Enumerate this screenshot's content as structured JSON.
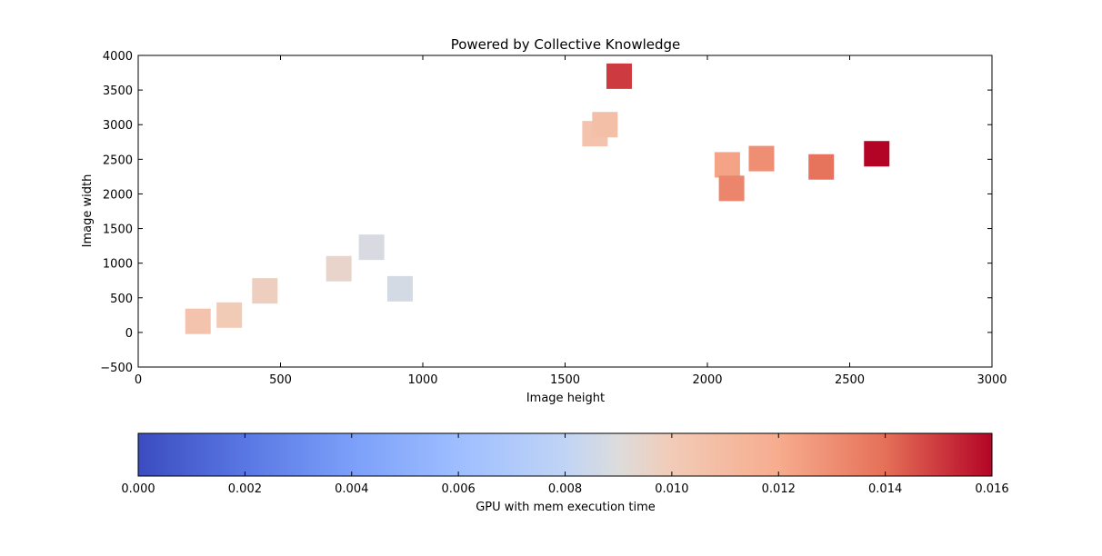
{
  "chart_data": {
    "type": "scatter",
    "title": "Powered by Collective Knowledge",
    "xlabel": "Image height",
    "ylabel": "Image width",
    "xlim": [
      0,
      3000
    ],
    "ylim": [
      -500,
      4000
    ],
    "xticks": [
      0,
      500,
      1000,
      1500,
      2000,
      2500,
      3000
    ],
    "yticks": [
      -500,
      0,
      500,
      1000,
      1500,
      2000,
      2500,
      3000,
      3500,
      4000
    ],
    "marker": "square",
    "colormap": "coolwarm",
    "colorbar": {
      "label": "GPU with mem execution time",
      "range": [
        0.0,
        0.016
      ],
      "ticks": [
        "0.000",
        "0.002",
        "0.004",
        "0.006",
        "0.008",
        "0.010",
        "0.012",
        "0.014",
        "0.016"
      ],
      "ticks_values": [
        0.0,
        0.002,
        0.004,
        0.006,
        0.008,
        0.01,
        0.012,
        0.014,
        0.016
      ]
    },
    "points": [
      {
        "x": 210,
        "y": 160,
        "c": 0.0105
      },
      {
        "x": 320,
        "y": 250,
        "c": 0.01
      },
      {
        "x": 445,
        "y": 600,
        "c": 0.0098
      },
      {
        "x": 705,
        "y": 920,
        "c": 0.0095
      },
      {
        "x": 820,
        "y": 1230,
        "c": 0.0088
      },
      {
        "x": 920,
        "y": 630,
        "c": 0.0087
      },
      {
        "x": 1605,
        "y": 2870,
        "c": 0.0105
      },
      {
        "x": 1640,
        "y": 3000,
        "c": 0.0108
      },
      {
        "x": 1690,
        "y": 3700,
        "c": 0.015
      },
      {
        "x": 2070,
        "y": 2420,
        "c": 0.0123
      },
      {
        "x": 2085,
        "y": 2080,
        "c": 0.0133
      },
      {
        "x": 2190,
        "y": 2510,
        "c": 0.013
      },
      {
        "x": 2400,
        "y": 2390,
        "c": 0.0139
      },
      {
        "x": 2595,
        "y": 2580,
        "c": 0.016
      }
    ]
  }
}
